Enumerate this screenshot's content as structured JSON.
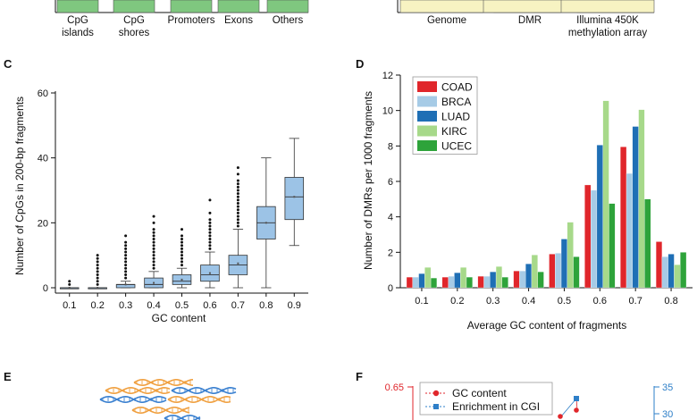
{
  "top_strip": {
    "left_categories": [
      "CpG islands",
      "CpG shores",
      "Promoters",
      "Exons",
      "Others"
    ],
    "left_bar_color": "#7fc77f",
    "right_categories": [
      "Genome",
      "DMR",
      "Illumina 450K methylation array"
    ],
    "right_bar_color": "#f7f3c2"
  },
  "panels": {
    "C": "C",
    "D": "D",
    "E": "E",
    "F": "F"
  },
  "chart_data": [
    {
      "type": "box",
      "panel": "C",
      "ylabel": "Number of CpGs in 200-bp fragments",
      "xlabel": "GC content",
      "ylim": [
        0,
        60
      ],
      "yticks": [
        0,
        20,
        40,
        60
      ],
      "categories": [
        "0.1",
        "0.2",
        "0.3",
        "0.4",
        "0.5",
        "0.6",
        "0.7",
        "0.8",
        "0.9"
      ],
      "box_color": "#9cc3e6",
      "boxes": [
        {
          "whislo": 0,
          "q1": 0,
          "med": 0,
          "q3": 0,
          "whishi": 0,
          "mean": 0,
          "fliers": [
            1,
            2
          ]
        },
        {
          "whislo": 0,
          "q1": 0,
          "med": 0,
          "q3": 0,
          "whishi": 0,
          "mean": 0,
          "fliers": [
            1,
            2,
            3,
            4,
            5,
            6,
            7,
            8,
            9,
            10
          ]
        },
        {
          "whislo": 0,
          "q1": 0,
          "med": 1,
          "q3": 1,
          "whishi": 2,
          "mean": 1,
          "fliers": [
            3,
            4,
            5,
            6,
            7,
            8,
            9,
            10,
            11,
            12,
            13,
            14,
            16
          ]
        },
        {
          "whislo": 0,
          "q1": 0,
          "med": 1,
          "q3": 3,
          "whishi": 5,
          "mean": 1.5,
          "fliers": [
            6,
            7,
            8,
            9,
            10,
            11,
            12,
            13,
            14,
            15,
            16,
            17,
            18,
            20,
            22
          ]
        },
        {
          "whislo": 0,
          "q1": 1,
          "med": 2,
          "q3": 4,
          "whishi": 6,
          "mean": 2.5,
          "fliers": [
            7,
            8,
            9,
            10,
            11,
            12,
            13,
            14,
            15,
            16,
            18
          ]
        },
        {
          "whislo": 0,
          "q1": 2,
          "med": 4,
          "q3": 7,
          "whishi": 11,
          "mean": 4.5,
          "fliers": [
            12,
            13,
            14,
            15,
            16,
            17,
            18,
            19,
            20,
            21,
            23,
            27
          ]
        },
        {
          "whislo": 0,
          "q1": 4,
          "med": 7,
          "q3": 10,
          "whishi": 18,
          "mean": 7.5,
          "fliers": [
            19,
            20,
            21,
            22,
            23,
            24,
            25,
            26,
            27,
            28,
            29,
            30,
            31,
            32,
            33,
            35,
            37
          ]
        },
        {
          "whislo": 0,
          "q1": 15,
          "med": 20,
          "q3": 25,
          "whishi": 40,
          "mean": 20,
          "fliers": []
        },
        {
          "whislo": 13,
          "q1": 21,
          "med": 28,
          "q3": 34,
          "whishi": 46,
          "mean": 28,
          "fliers": []
        }
      ]
    },
    {
      "type": "bar",
      "panel": "D",
      "ylabel": "Number of DMRs per 1000 fragments",
      "xlabel": "Average GC content of fragments",
      "ylim": [
        0,
        12
      ],
      "yticks": [
        0,
        2,
        4,
        6,
        8,
        10,
        12
      ],
      "legend_position": "top-left",
      "categories": [
        "0.1",
        "0.2",
        "0.3",
        "0.4",
        "0.5",
        "0.6",
        "0.7",
        "0.8"
      ],
      "series": [
        {
          "name": "COAD",
          "color": "#e0262b",
          "values": [
            0.6,
            0.6,
            0.65,
            0.95,
            1.9,
            5.8,
            7.95,
            2.6
          ]
        },
        {
          "name": "BRCA",
          "color": "#a6cbe6",
          "values": [
            0.6,
            0.65,
            0.65,
            0.95,
            1.95,
            5.5,
            6.45,
            1.75
          ]
        },
        {
          "name": "LUAD",
          "color": "#1f6fb5",
          "values": [
            0.8,
            0.85,
            0.9,
            1.35,
            2.75,
            8.05,
            9.1,
            1.9
          ]
        },
        {
          "name": "KIRC",
          "color": "#a7d98a",
          "values": [
            1.15,
            1.15,
            1.2,
            1.85,
            3.7,
            10.55,
            10.05,
            1.3
          ]
        },
        {
          "name": "UCEC",
          "color": "#2ea33a",
          "values": [
            0.55,
            0.6,
            0.6,
            0.9,
            1.75,
            4.75,
            5.0,
            2.0
          ]
        }
      ]
    },
    {
      "type": "line",
      "panel": "F",
      "y_left_ticks": [
        "0.65"
      ],
      "y_left_color": "#e0262b",
      "y_right_ticks": [
        "35",
        "30"
      ],
      "y_right_color": "#2e7fc8",
      "legend": [
        {
          "name": "GC content",
          "color": "#e0262b",
          "marker": "circle"
        },
        {
          "name": "Enrichment in CGI",
          "color": "#2e7fc8",
          "marker": "square"
        }
      ]
    }
  ],
  "colors": {
    "dna_orange": "#f0a040",
    "dna_blue": "#3a80d0"
  }
}
